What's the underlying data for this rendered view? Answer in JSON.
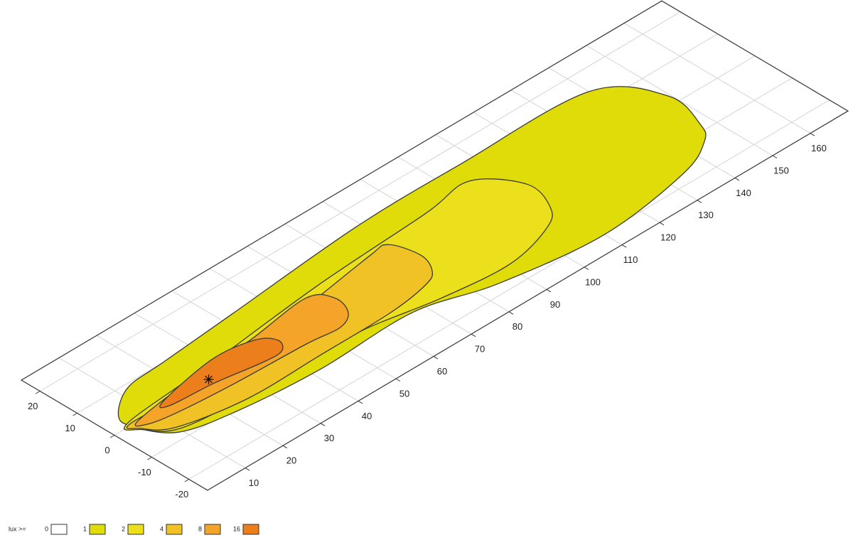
{
  "chart_data": {
    "type": "contour",
    "legend_title": "lux >=",
    "levels": [
      0,
      1,
      2,
      4,
      8,
      16
    ],
    "colors": [
      "#ffffff",
      "#e0dc0a",
      "#ecdf1c",
      "#f0c226",
      "#f5a42a",
      "#ec7f1c"
    ],
    "contours": [
      [
        [
          5,
          4
        ],
        [
          12.5,
          9
        ],
        [
          23,
          10
        ],
        [
          43,
          11.7
        ],
        [
          79,
          14.8
        ],
        [
          107,
          15
        ],
        [
          140,
          14.2
        ],
        [
          149.5,
          2.6
        ],
        [
          147.4,
          -8.2
        ],
        [
          144,
          -12.7
        ],
        [
          134,
          -17.1
        ],
        [
          110,
          -20.3
        ],
        [
          85,
          -17.2
        ],
        [
          67,
          -12.2
        ],
        [
          42,
          -12.7
        ],
        [
          21,
          -10.9
        ],
        [
          9,
          -7.8
        ],
        [
          4.3,
          -0.3
        ]
      ],
      [
        [
          4.6,
          1
        ],
        [
          29.4,
          3.3
        ],
        [
          61,
          6.7
        ],
        [
          91,
          8.5
        ],
        [
          104,
          10
        ],
        [
          111,
          1.5
        ],
        [
          109,
          -6.7
        ],
        [
          104,
          -11
        ],
        [
          91,
          -14.3
        ],
        [
          74,
          -12.8
        ],
        [
          55,
          -9.4
        ],
        [
          32,
          -9.2
        ],
        [
          11,
          -7.5
        ],
        [
          5,
          -2.5
        ]
      ],
      [
        [
          5,
          0.5
        ],
        [
          26,
          0
        ],
        [
          52,
          3.1
        ],
        [
          74,
          6.4
        ],
        [
          79,
          6.5
        ],
        [
          81,
          -0.3
        ],
        [
          79,
          -5.4
        ],
        [
          75,
          -7.7
        ],
        [
          64,
          -9.3
        ],
        [
          45,
          -9.5
        ],
        [
          26,
          -9.6
        ],
        [
          10,
          -6.5
        ],
        [
          5,
          -2
        ]
      ],
      [
        [
          6,
          0
        ],
        [
          21,
          2.2
        ],
        [
          39,
          3.3
        ],
        [
          56,
          5.4
        ],
        [
          60,
          1.5
        ],
        [
          58.5,
          -3.6
        ],
        [
          54,
          -5.9
        ],
        [
          46,
          -5.1
        ],
        [
          27.5,
          -4.4
        ],
        [
          13.6,
          -3.3
        ],
        [
          7,
          -2
        ]
      ],
      [
        [
          14,
          1.1
        ],
        [
          30,
          4.1
        ],
        [
          40,
          2.7
        ],
        [
          43,
          -0.5
        ],
        [
          41,
          -3.4
        ],
        [
          36,
          -3.4
        ],
        [
          25,
          -1.6
        ],
        [
          14,
          -0.7
        ]
      ]
    ],
    "max_point": [
      25,
      0
    ],
    "xlim": [
      0,
      170
    ],
    "ylim": [
      -25,
      25
    ],
    "xticks": [
      10,
      20,
      30,
      40,
      50,
      60,
      70,
      80,
      90,
      100,
      110,
      120,
      130,
      140,
      150,
      160
    ],
    "yticks": [
      -20,
      -10,
      0,
      10,
      20
    ],
    "grid": true
  }
}
